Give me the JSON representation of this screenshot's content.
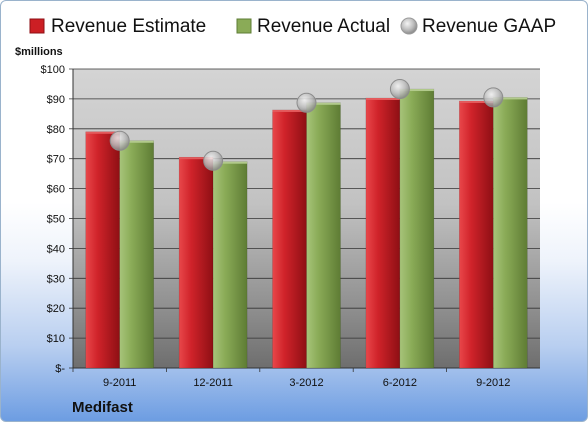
{
  "chart_data": {
    "type": "bar",
    "company": "Medifast",
    "unit_label": "$millions",
    "categories": [
      "9-2011",
      "12-2011",
      "3-2012",
      "6-2012",
      "9-2012"
    ],
    "series": [
      {
        "name": "Revenue Estimate",
        "kind": "bar",
        "color": "#cc1f24",
        "values": [
          79.0,
          70.5,
          86.3,
          90.3,
          89.3
        ]
      },
      {
        "name": "Revenue Actual",
        "kind": "bar",
        "color": "#8aab57",
        "values": [
          76.0,
          69.0,
          88.7,
          93.3,
          90.5
        ]
      },
      {
        "name": "Revenue GAAP",
        "kind": "marker",
        "color": "#bfbfbf",
        "values": [
          76.0,
          69.3,
          88.7,
          93.3,
          90.5
        ]
      }
    ],
    "y_ticks": [
      "$-",
      "$10",
      "$20",
      "$30",
      "$40",
      "$50",
      "$60",
      "$70",
      "$80",
      "$90",
      "$100"
    ],
    "ylim": [
      0,
      100
    ],
    "grid": true,
    "legend_position": "top"
  }
}
